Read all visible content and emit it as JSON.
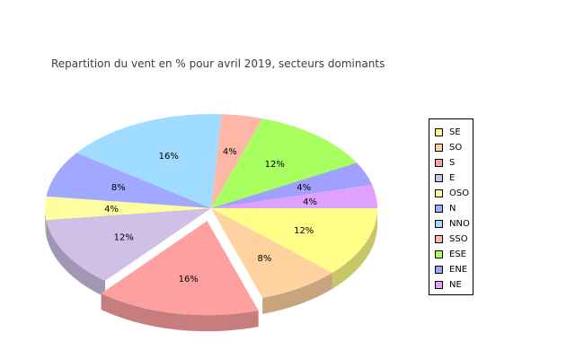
{
  "chart_data": {
    "type": "pie",
    "title": "Repartition du vent en % pour avril 2019, secteurs dominants",
    "categories": [
      "SE",
      "SO",
      "S",
      "E",
      "OSO",
      "N",
      "NNO",
      "SSO",
      "ESE",
      "ENE",
      "NE"
    ],
    "values": [
      12,
      8,
      16,
      12,
      4,
      8,
      16,
      4,
      12,
      4,
      4
    ],
    "value_labels": [
      "12%",
      "8%",
      "16%",
      "12%",
      "4%",
      "8%",
      "16%",
      "4%",
      "12%",
      "4%",
      "4%"
    ],
    "colors": [
      "#ffff88",
      "#ffd2a0",
      "#ffa0a0",
      "#d0c0e8",
      "#ffffa0",
      "#a0a8ff",
      "#a0dcff",
      "#ffb8a8",
      "#a8ff60",
      "#a0a0ff",
      "#e0a0ff"
    ],
    "exploded": "S",
    "legend_position": "right",
    "three_d": true
  }
}
